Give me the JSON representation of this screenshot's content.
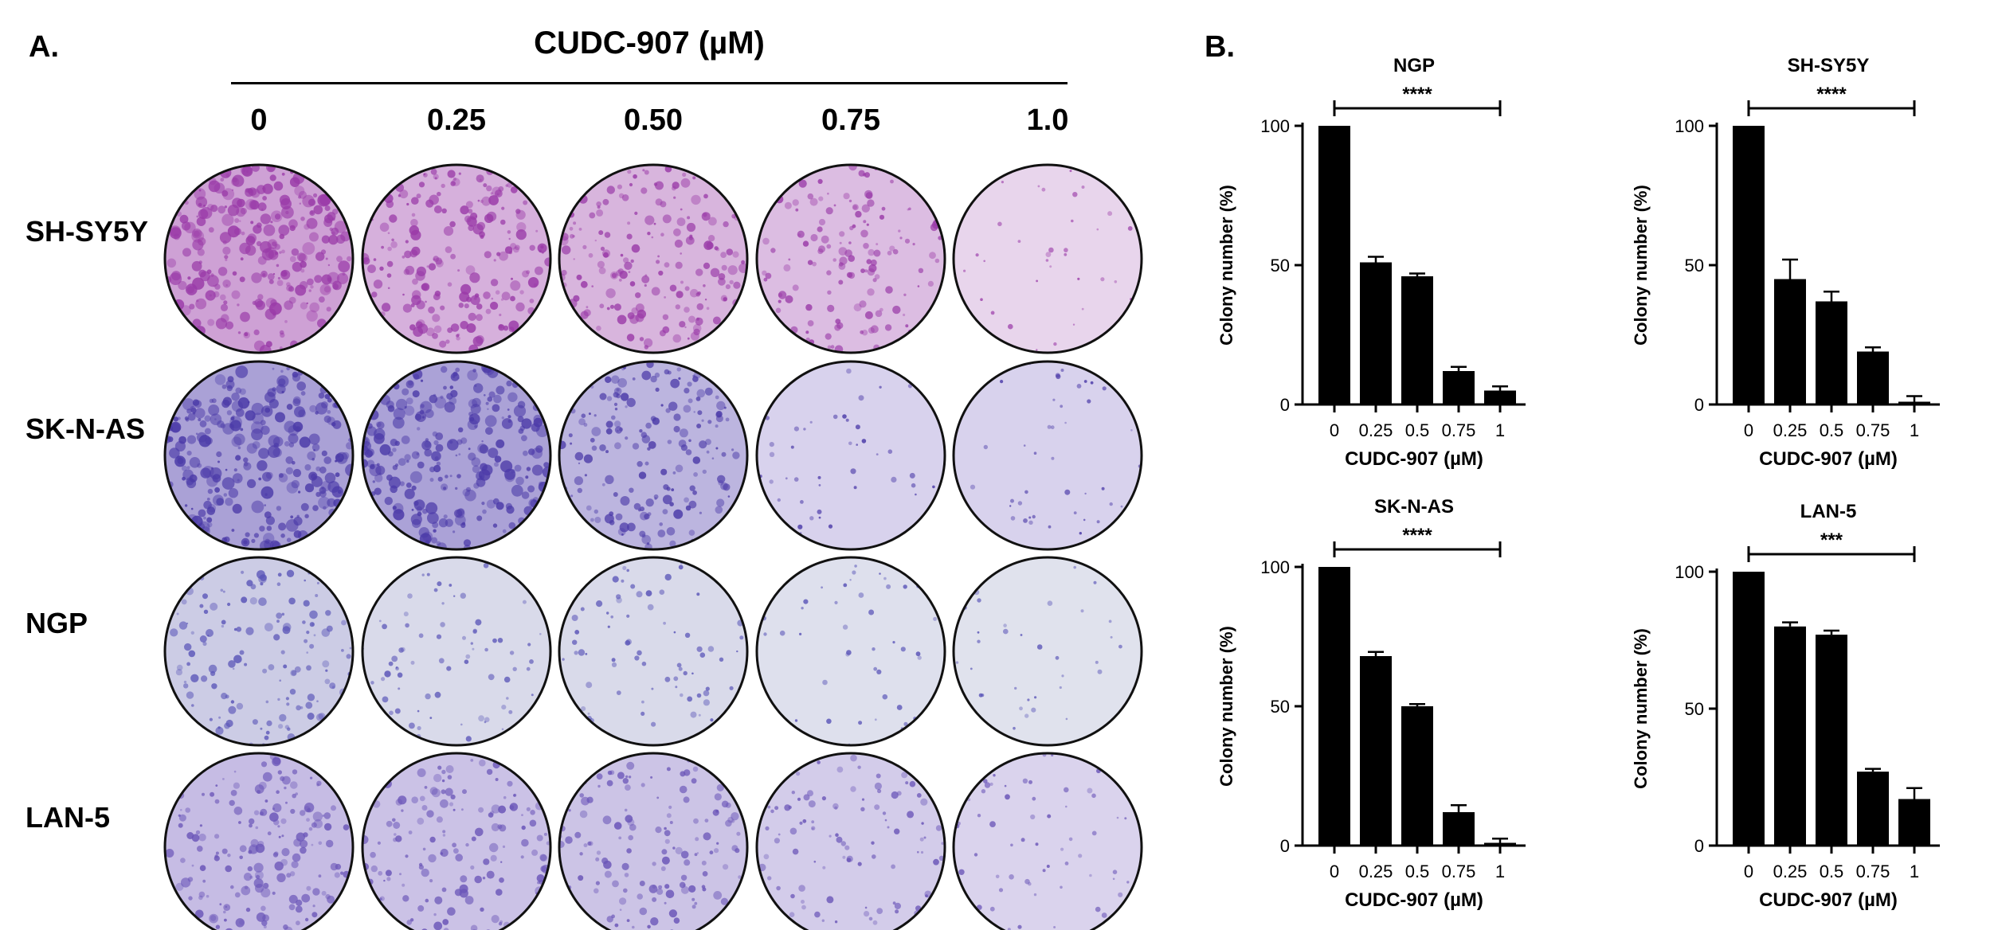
{
  "panel_a": {
    "letter": "A.",
    "drug_title": "CUDC-907 (µM)",
    "doses": [
      "0",
      "0.25",
      "0.50",
      "0.75",
      "1.0"
    ],
    "rows": [
      {
        "label": "SH-SY5Y",
        "tint": "#9a3aa8",
        "bg": "#efe2f2",
        "density": [
          0.95,
          0.7,
          0.6,
          0.45,
          0.05
        ]
      },
      {
        "label": "SK-N-AS",
        "tint": "#4b3aa8",
        "bg": "#e6e2f4",
        "density": [
          0.95,
          0.9,
          0.6,
          0.08,
          0.08
        ]
      },
      {
        "label": "NGP",
        "tint": "#5a55b8",
        "bg": "#eceef2",
        "density": [
          0.45,
          0.2,
          0.2,
          0.08,
          0.05
        ]
      },
      {
        "label": "LAN-5",
        "tint": "#6a55b8",
        "bg": "#e8e3f4",
        "density": [
          0.6,
          0.5,
          0.45,
          0.3,
          0.15
        ]
      }
    ]
  },
  "panel_b": {
    "letter": "B."
  },
  "chart_data": [
    {
      "type": "bar",
      "title": "NGP",
      "categories": [
        "0",
        "0.25",
        "0.5",
        "0.75",
        "1"
      ],
      "values": [
        100,
        51,
        46,
        12,
        5
      ],
      "errors": [
        0,
        2,
        1,
        1.5,
        1.5
      ],
      "xlabel": "CUDC-907 (µM)",
      "ylabel": "Colony number (%)",
      "ylim": [
        0,
        100
      ],
      "yticks": [
        "0",
        "50",
        "100"
      ],
      "significance": "****",
      "bar_color": "#000000"
    },
    {
      "type": "bar",
      "title": "SH-SY5Y",
      "categories": [
        "0",
        "0.25",
        "0.5",
        "0.75",
        "1"
      ],
      "values": [
        100,
        45,
        37,
        19,
        1
      ],
      "errors": [
        0,
        7,
        3.5,
        1.5,
        2
      ],
      "xlabel": "CUDC-907 (µM)",
      "ylabel": "Colony number (%)",
      "ylim": [
        0,
        100
      ],
      "yticks": [
        "0",
        "50",
        "100"
      ],
      "significance": "****",
      "bar_color": "#000000"
    },
    {
      "type": "bar",
      "title": "SK-N-AS",
      "categories": [
        "0",
        "0.25",
        "0.5",
        "0.75",
        "1"
      ],
      "values": [
        100,
        68,
        50,
        12,
        1
      ],
      "errors": [
        0,
        1.5,
        0.8,
        2.5,
        1.5
      ],
      "xlabel": "CUDC-907 (µM)",
      "ylabel": "Colony number (%)",
      "ylim": [
        0,
        100
      ],
      "yticks": [
        "0",
        "50",
        "100"
      ],
      "significance": "****",
      "bar_color": "#000000"
    },
    {
      "type": "bar",
      "title": "LAN-5",
      "categories": [
        "0",
        "0.25",
        "0.5",
        "0.75",
        "1"
      ],
      "values": [
        100,
        80,
        77,
        27,
        17
      ],
      "errors": [
        0,
        1.5,
        1.5,
        1,
        4
      ],
      "xlabel": "CUDC-907 (µM)",
      "ylabel": "Colony number (%)",
      "ylim": [
        0,
        100
      ],
      "yticks": [
        "0",
        "50",
        "100"
      ],
      "significance": "***",
      "bar_color": "#000000"
    }
  ]
}
